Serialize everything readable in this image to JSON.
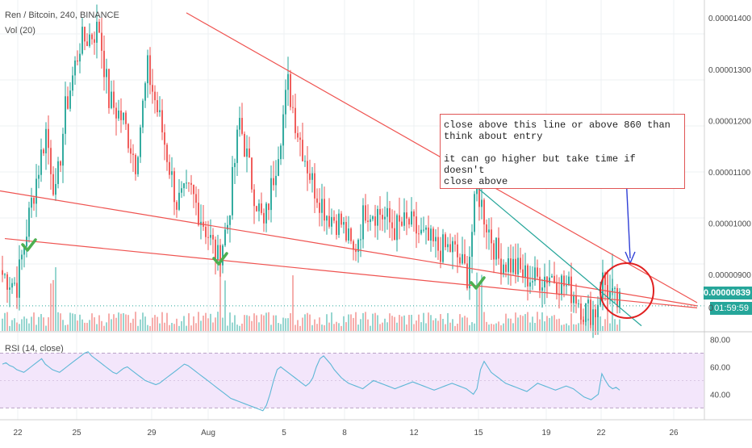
{
  "header": {
    "symbol": "Ren / Bitcoin, 240, BINANCE",
    "volume_label": "Vol (20)",
    "rsi_label": "RSI (14, close)"
  },
  "annotation": {
    "line1": "close above this line or above 860 than",
    "line2": "think about entry",
    "line3": "it can go higher but take time if doesn't",
    "line4": "close above"
  },
  "price_axis": {
    "ticks": [
      "0.00001400",
      "0.00001300",
      "0.00001200",
      "0.00001100",
      "0.00001000",
      "0.00000900"
    ],
    "current_price": "0.00000839",
    "countdown_prefix": "0",
    "countdown": "01:59:59"
  },
  "rsi_axis": {
    "ticks": [
      "80.00",
      "60.00",
      "40.00"
    ]
  },
  "time_axis": {
    "ticks": [
      "22",
      "25",
      "29",
      "Aug",
      "5",
      "8",
      "12",
      "15",
      "19",
      "22",
      "26"
    ]
  },
  "colors": {
    "up": "#26a69a",
    "down": "#ef5350",
    "trendline": "#ef5350",
    "support": "#26a69a",
    "rsi_line": "#5db7d6",
    "rsi_band": "#f3e6fb",
    "check": "#4caf50",
    "arrow": "#2f3fd6",
    "circle": "#e02020"
  },
  "chart_data": {
    "type": "candlestick",
    "title": "Ren / Bitcoin, 240, BINANCE",
    "ylim": [
      7.9e-06,
      1.435e-05
    ],
    "xlim": [
      0,
      290
    ],
    "series": [
      {
        "name": "price",
        "ohlc_anchor_closes": [
          [
            0,
            9e-06
          ],
          [
            6,
            8.8e-06
          ],
          [
            12,
            1.04e-05
          ],
          [
            18,
            1.18e-05
          ],
          [
            22,
            1.05e-05
          ],
          [
            26,
            1.22e-05
          ],
          [
            32,
            1.35e-05
          ],
          [
            40,
            1.38e-05
          ],
          [
            44,
            1.24e-05
          ],
          [
            50,
            1.2e-05
          ],
          [
            55,
            1.12e-05
          ],
          [
            60,
            1.3e-05
          ],
          [
            66,
            1.18e-05
          ],
          [
            72,
            1.04e-05
          ],
          [
            78,
            1.06e-05
          ],
          [
            84,
            9.9e-06
          ],
          [
            89,
            9.3e-06
          ],
          [
            93,
            1e-05
          ],
          [
            98,
            1.2e-05
          ],
          [
            103,
            1.08e-05
          ],
          [
            108,
            9.9e-06
          ],
          [
            113,
            1.12e-05
          ],
          [
            118,
            1.27e-05
          ],
          [
            122,
            1.18e-05
          ],
          [
            128,
            1.08e-05
          ],
          [
            134,
            1.02e-05
          ],
          [
            140,
            1e-05
          ],
          [
            145,
            9.4e-06
          ],
          [
            150,
            1.03e-05
          ],
          [
            156,
            1.02e-05
          ],
          [
            162,
            9.9e-06
          ],
          [
            168,
            1e-05
          ],
          [
            174,
            9.7e-06
          ],
          [
            180,
            9.5e-06
          ],
          [
            186,
            9.5e-06
          ],
          [
            192,
            9e-06
          ],
          [
            196,
            1.07e-05
          ],
          [
            200,
            1e-05
          ],
          [
            205,
            9.3e-06
          ],
          [
            210,
            9.2e-06
          ],
          [
            215,
            9e-06
          ],
          [
            220,
            8.9e-06
          ],
          [
            226,
            9e-06
          ],
          [
            232,
            8.8e-06
          ],
          [
            237,
            8.6e-06
          ],
          [
            240,
            8.3e-06
          ],
          [
            245,
            8.3e-06
          ],
          [
            248,
            8.9e-06
          ],
          [
            252,
            8.5e-06
          ],
          [
            255,
            8.4e-06
          ]
        ]
      }
    ],
    "trendlines": [
      {
        "name": "upper-downtrend",
        "from": [
          77,
          1.41e-05
        ],
        "to": [
          288,
          8.45e-06
        ]
      },
      {
        "name": "mid-downtrend",
        "from": [
          0,
          1.063e-05
        ],
        "to": [
          288,
          8.39e-06
        ]
      },
      {
        "name": "lower-downtrend",
        "from": [
          2,
          9.7e-06
        ],
        "to": [
          288,
          8.35e-06
        ]
      },
      {
        "name": "steep-downtrend",
        "from": [
          197,
          1.07e-05
        ],
        "to": [
          265,
          8e-06
        ]
      }
    ],
    "rsi": {
      "ylim": [
        22,
        85
      ],
      "upper_band": 70,
      "lower_band": 30,
      "values": [
        62,
        63,
        61,
        60,
        58,
        57,
        56,
        58,
        60,
        62,
        64,
        66,
        62,
        60,
        58,
        57,
        56,
        58,
        60,
        62,
        64,
        66,
        68,
        70,
        71,
        68,
        66,
        64,
        62,
        60,
        58,
        56,
        55,
        57,
        59,
        60,
        58,
        56,
        54,
        52,
        50,
        49,
        48,
        47,
        48,
        50,
        52,
        54,
        56,
        58,
        60,
        62,
        61,
        59,
        57,
        55,
        53,
        51,
        49,
        47,
        45,
        43,
        41,
        39,
        37,
        36,
        35,
        34,
        33,
        32,
        31,
        30,
        29,
        28,
        32,
        40,
        50,
        58,
        60,
        58,
        56,
        54,
        52,
        50,
        48,
        46,
        48,
        52,
        60,
        66,
        68,
        65,
        62,
        58,
        55,
        52,
        50,
        48,
        47,
        46,
        45,
        44,
        46,
        48,
        50,
        49,
        48,
        47,
        46,
        45,
        44,
        45,
        46,
        47,
        48,
        49,
        48,
        47,
        46,
        45,
        44,
        43,
        44,
        45,
        46,
        47,
        48,
        47,
        46,
        45,
        44,
        42,
        40,
        44,
        58,
        64,
        60,
        56,
        54,
        52,
        50,
        48,
        47,
        46,
        45,
        44,
        43,
        42,
        44,
        46,
        48,
        47,
        46,
        45,
        44,
        43,
        44,
        45,
        46,
        45,
        44,
        42,
        40,
        38,
        37,
        36,
        38,
        40,
        55,
        50,
        46,
        44,
        45,
        43
      ]
    },
    "volume": {
      "ylim": [
        0,
        30
      ],
      "note": "relative volume per candle"
    }
  }
}
